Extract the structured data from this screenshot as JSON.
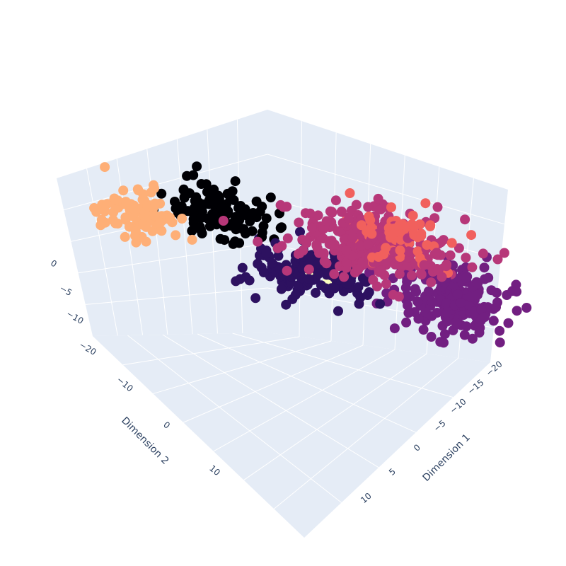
{
  "chart_data": {
    "type": "scatter3d",
    "axes": {
      "x": {
        "title": "Dimension 1",
        "ticks": [
          "−20",
          "−15",
          "−10",
          "−5",
          "0",
          "5",
          "10"
        ],
        "range": [
          -22,
          14
        ]
      },
      "y": {
        "title": "Dimension 2",
        "ticks": [
          "−10",
          "0",
          "10"
        ],
        "range": [
          -16,
          18
        ]
      },
      "z": {
        "ticks": [
          "−20",
          "−15",
          "−10",
          "−5",
          "0"
        ],
        "range": [
          -20,
          2
        ]
      }
    },
    "grid": true,
    "legend": "none",
    "colors": {
      "scene_bg": "#e5ecf6",
      "grid": "#ffffff",
      "palette": [
        "#000004",
        "#2d1160",
        "#721f81",
        "#b73779",
        "#f1605d",
        "#feaf77",
        "#fcfdbf"
      ]
    },
    "clusters": [
      {
        "color_index": 0,
        "center": [
          -12,
          9,
          -2
        ],
        "spread": [
          2.0,
          2.0,
          2.2
        ],
        "count": 130
      },
      {
        "color_index": 1,
        "center": [
          -9,
          2,
          -10
        ],
        "spread": [
          2.4,
          2.6,
          2.0
        ],
        "count": 150
      },
      {
        "color_index": 2,
        "center": [
          2,
          -2,
          -13
        ],
        "spread": [
          2.5,
          2.2,
          2.2
        ],
        "count": 230
      },
      {
        "color_index": 3,
        "center": [
          -6,
          -7,
          -6
        ],
        "spread": [
          3.2,
          2.6,
          2.6
        ],
        "count": 320
      },
      {
        "color_index": 4,
        "center": [
          -6,
          -11,
          -5
        ],
        "spread": [
          2.2,
          1.8,
          1.8
        ],
        "count": 70
      },
      {
        "color_index": 5,
        "center": [
          -20,
          8,
          -3
        ],
        "spread": [
          1.6,
          1.6,
          1.8
        ],
        "count": 90
      },
      {
        "color_index": 6,
        "center": [
          -4,
          8,
          -9
        ],
        "spread": [
          1.2,
          1.2,
          1.2
        ],
        "count": 25
      }
    ]
  }
}
